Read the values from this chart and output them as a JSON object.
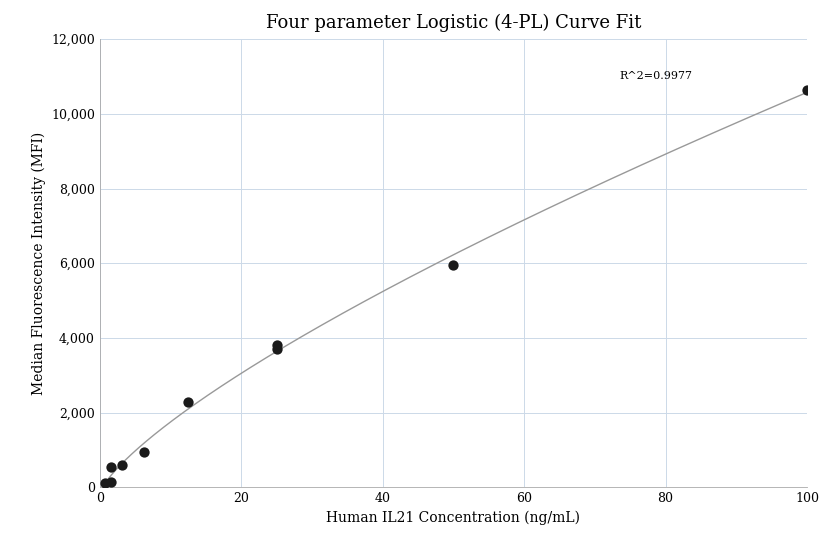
{
  "title": "Four parameter Logistic (4-PL) Curve Fit",
  "xlabel": "Human IL21 Concentration (ng/mL)",
  "ylabel": "Median Fluorescence Intensity (MFI)",
  "scatter_x": [
    0.781,
    1.563,
    1.563,
    3.125,
    6.25,
    12.5,
    25.0,
    25.0,
    50.0,
    100.0
  ],
  "scatter_y": [
    100,
    150,
    550,
    600,
    950,
    2280,
    3700,
    3800,
    5950,
    10650
  ],
  "r_squared": "R^2=0.9977",
  "xlim": [
    0,
    100
  ],
  "ylim": [
    0,
    12000
  ],
  "yticks": [
    0,
    2000,
    4000,
    6000,
    8000,
    10000,
    12000
  ],
  "xticks": [
    0,
    20,
    40,
    60,
    80,
    100
  ],
  "dot_color": "#1a1a1a",
  "dot_size": 55,
  "line_color": "#999999",
  "background_color": "#ffffff",
  "grid_color": "#ccd9e8",
  "title_fontsize": 13,
  "label_fontsize": 10,
  "tick_fontsize": 9,
  "annotation_fontsize": 8,
  "4pl_A": -500,
  "4pl_B": 0.72,
  "4pl_C": 250,
  "4pl_D": 80000
}
